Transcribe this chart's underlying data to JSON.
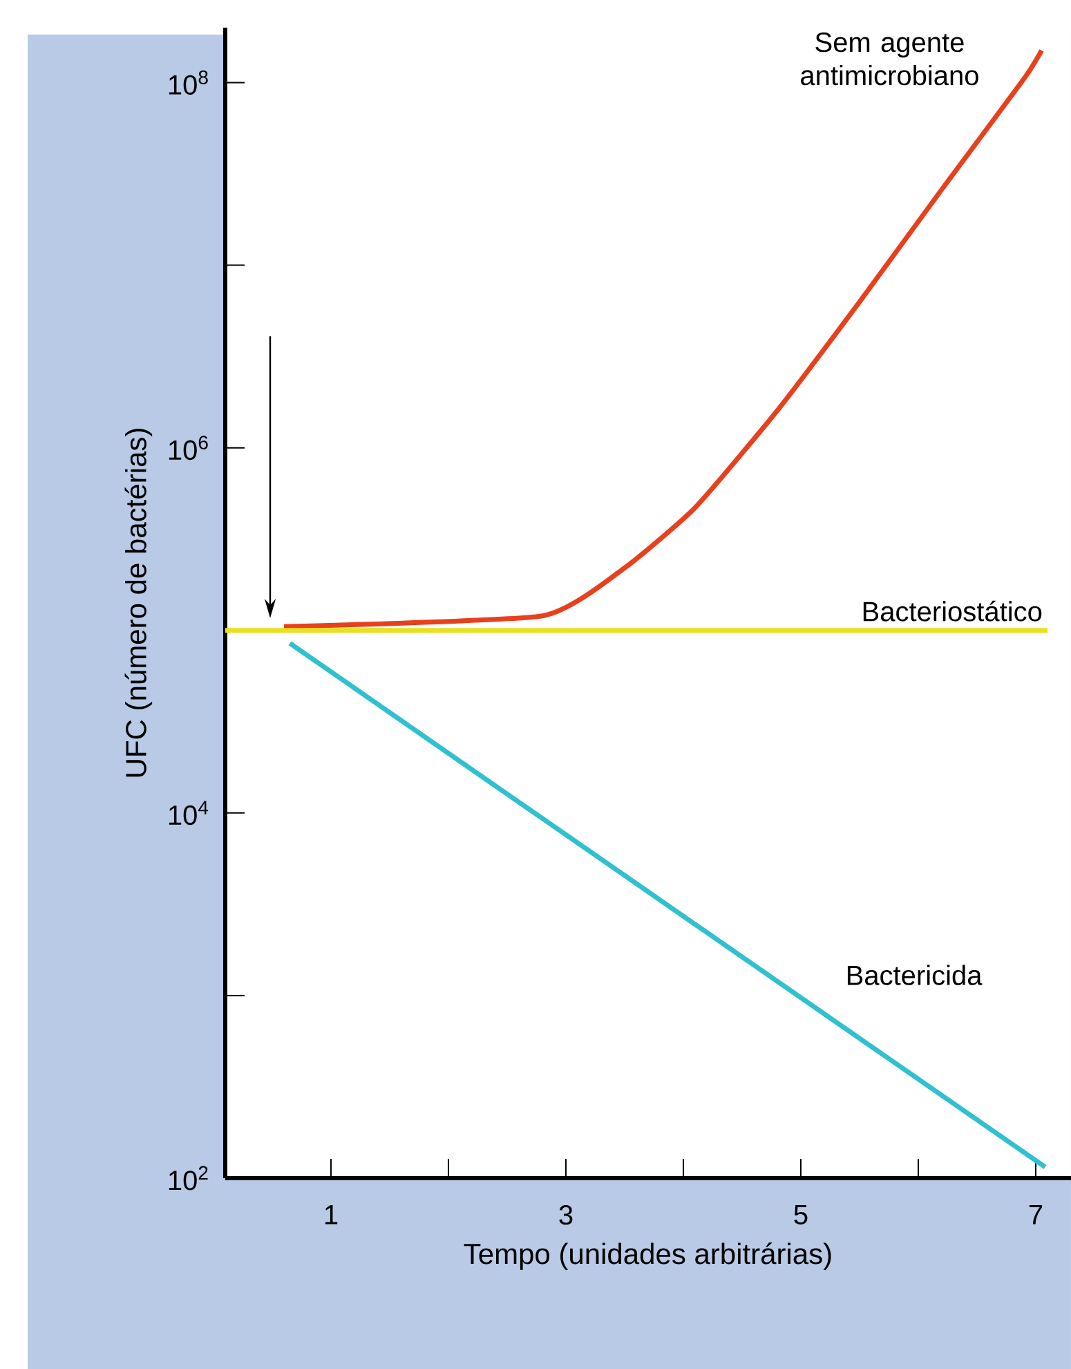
{
  "chart_data": {
    "type": "line",
    "xlabel": "Tempo (unidades arbitrárias)",
    "ylabel": "UFC (número de bactérias)",
    "log": true,
    "xlim": [
      0.1,
      7.3
    ],
    "ylim": [
      100,
      200000000
    ],
    "xticks": [
      1,
      {
        "value": 2,
        "label": null
      },
      3,
      {
        "value": 4,
        "label": null
      },
      5,
      {
        "value": 6,
        "label": null
      },
      7
    ],
    "yticks": [
      {
        "value": 100,
        "label": "10$^{2}$"
      },
      {
        "value": 1000,
        "label": null
      },
      {
        "value": 10000,
        "label": "10$^{4}$"
      },
      {
        "value": 100000,
        "label": null
      },
      {
        "value": 1000000,
        "label": "10$^{6}$"
      },
      {
        "value": 10000000,
        "label": null
      },
      {
        "value": 100000000,
        "label": "10$^{8}$"
      }
    ],
    "series": [
      {
        "name": "Sem agente antimicrobiano",
        "color": "#e8401c",
        "x": [
          0.6,
          2.8,
          3.5,
          4.1,
          4.8,
          5.5,
          6.2,
          6.9,
          7.05
        ],
        "values": [
          105000,
          120000,
          220000,
          470000,
          1600000,
          6300000,
          26000000,
          105000000,
          150000000
        ]
      },
      {
        "name": "Bacteriostático",
        "color": "#e8e020",
        "x": [
          0.1,
          7.1
        ],
        "values": [
          100000,
          100000
        ]
      },
      {
        "name": "Bactericida",
        "color": "#30c0d0",
        "x": [
          0.65,
          7.08
        ],
        "values": [
          85000,
          115
        ]
      }
    ]
  }
}
